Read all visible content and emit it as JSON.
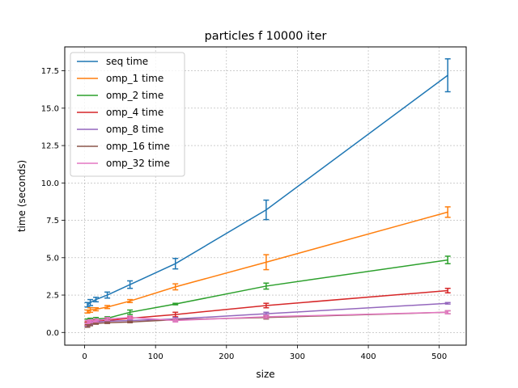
{
  "chart_data": {
    "type": "line",
    "title": "particles f 10000 iter",
    "xlabel": "size",
    "ylabel": "time (seconds)",
    "xlim": [
      -28,
      538
    ],
    "ylim": [
      -0.85,
      19.1
    ],
    "xticks": [
      0,
      100,
      200,
      300,
      400,
      500
    ],
    "yticks": [
      0.0,
      2.5,
      5.0,
      7.5,
      10.0,
      12.5,
      15.0,
      17.5
    ],
    "grid": true,
    "legend_position": "top-left",
    "x": [
      4,
      8,
      16,
      32,
      64,
      128,
      256,
      512
    ],
    "series": [
      {
        "name": "seq time",
        "color": "#1f77b4",
        "values": [
          1.85,
          2.0,
          2.2,
          2.5,
          3.2,
          4.6,
          8.2,
          17.2
        ],
        "errors": [
          0.15,
          0.2,
          0.15,
          0.2,
          0.25,
          0.35,
          0.65,
          1.1
        ]
      },
      {
        "name": "omp_1 time",
        "color": "#ff7f0e",
        "values": [
          1.4,
          1.5,
          1.55,
          1.7,
          2.1,
          3.05,
          4.7,
          8.05
        ],
        "errors": [
          0.1,
          0.15,
          0.1,
          0.1,
          0.1,
          0.2,
          0.5,
          0.35
        ]
      },
      {
        "name": "omp_2 time",
        "color": "#2ca02c",
        "values": [
          0.8,
          0.85,
          0.9,
          0.95,
          1.35,
          1.9,
          3.1,
          4.85
        ],
        "errors": [
          0.1,
          0.1,
          0.1,
          0.1,
          0.15,
          0.05,
          0.2,
          0.25
        ]
      },
      {
        "name": "omp_4 time",
        "color": "#d62728",
        "values": [
          0.6,
          0.7,
          0.75,
          0.8,
          0.95,
          1.2,
          1.8,
          2.8
        ],
        "errors": [
          0.1,
          0.1,
          0.05,
          0.1,
          0.1,
          0.15,
          0.15,
          0.15
        ]
      },
      {
        "name": "omp_8 time",
        "color": "#9467bd",
        "values": [
          0.5,
          0.6,
          0.7,
          0.75,
          0.8,
          0.9,
          1.25,
          1.95
        ],
        "errors": [
          0.1,
          0.1,
          0.05,
          0.05,
          0.05,
          0.1,
          0.1,
          0.05
        ]
      },
      {
        "name": "omp_16 time",
        "color": "#8c564b",
        "values": [
          0.45,
          0.55,
          0.6,
          0.65,
          0.7,
          0.85,
          1.0,
          1.35
        ],
        "errors": [
          0.1,
          0.1,
          0.05,
          0.05,
          0.05,
          0.05,
          0.1,
          0.1
        ]
      },
      {
        "name": "omp_32 time",
        "color": "#e377c2",
        "values": [
          0.7,
          0.75,
          0.8,
          0.9,
          1.0,
          0.8,
          1.05,
          1.35
        ],
        "errors": [
          0.1,
          0.1,
          0.1,
          0.1,
          0.1,
          0.1,
          0.1,
          0.1
        ]
      }
    ]
  }
}
